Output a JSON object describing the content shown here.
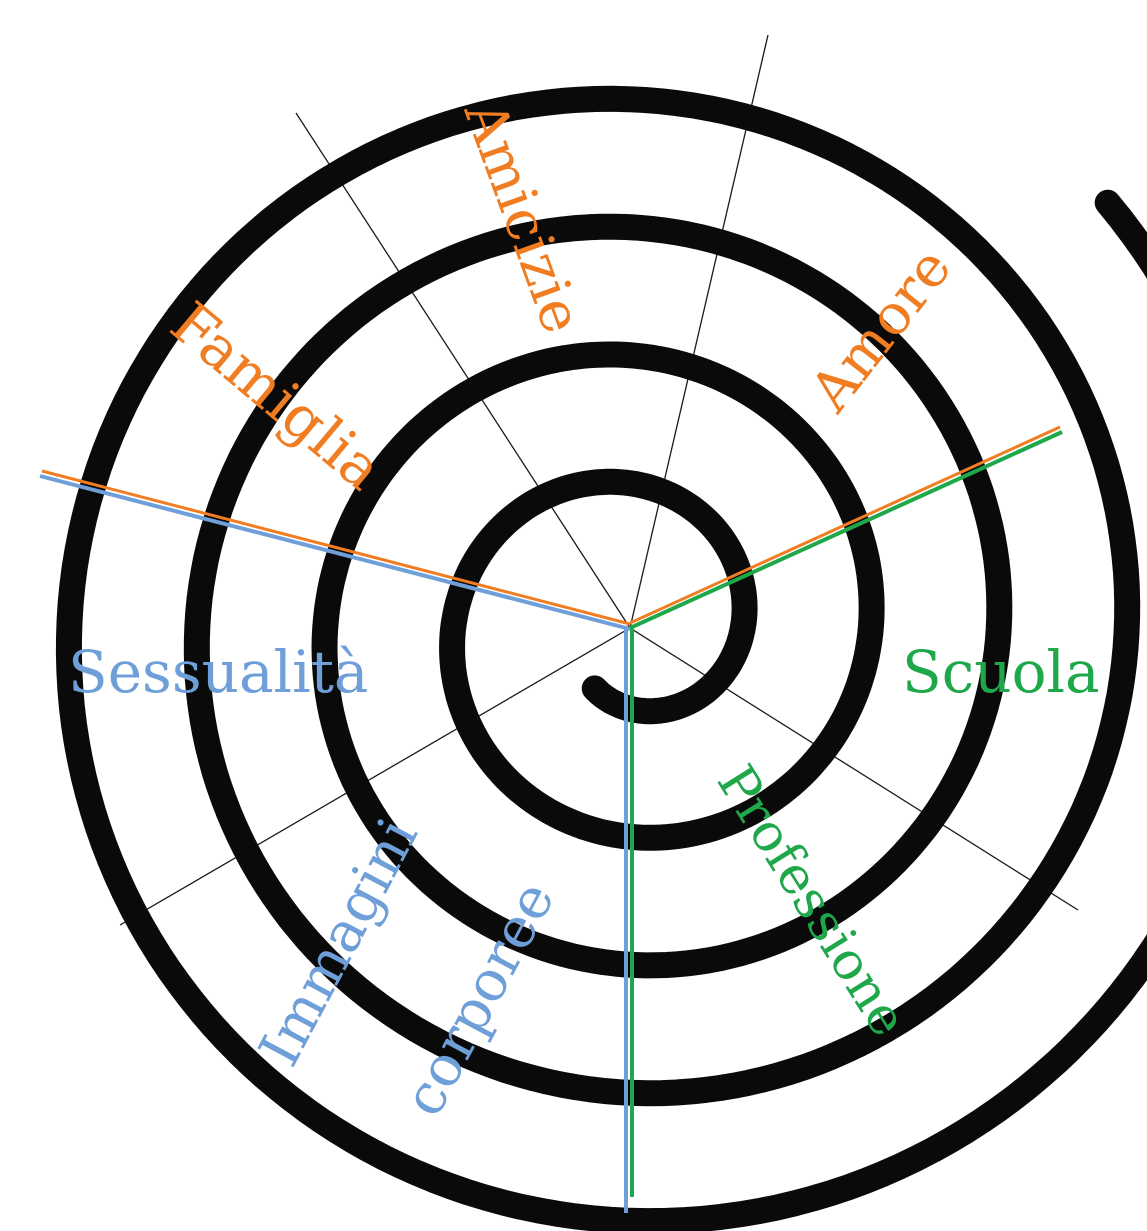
{
  "labels": {
    "amicizie": "Amicizie",
    "famiglia": "Famiglia",
    "amore": "Amore",
    "sessualita": "Sessualità",
    "scuola": "Scuola",
    "immagini_line1": "Immagini",
    "immagini_line2": "corporee",
    "professione": "Professione"
  },
  "colors": {
    "orange": "#f07d22",
    "blue": "#6f9fd8",
    "green": "#1fa84a",
    "spiral": "#0a0a0a",
    "spoke": "#1a1a1a"
  }
}
